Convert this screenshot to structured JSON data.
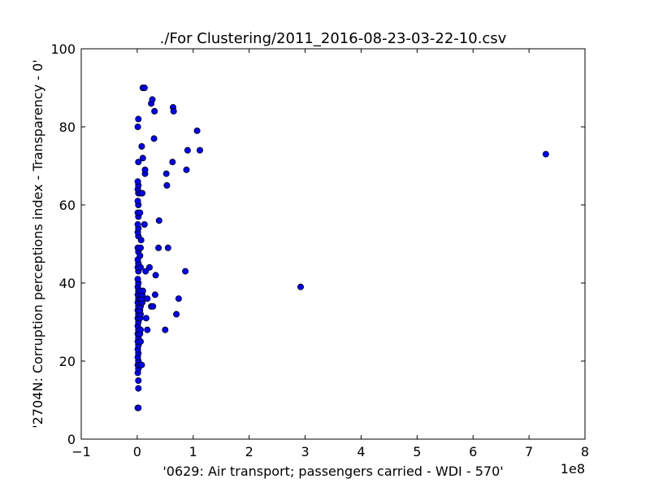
{
  "chart_data": {
    "type": "scatter",
    "title": "./For Clustering/2011_2016-08-23-03-22-10.csv",
    "xlabel": "'0629: Air transport; passengers carried - WDI - 570'",
    "ylabel": "'2704N: Corruption perceptions index - Transparency - 0'",
    "x_offset_label": "1e8",
    "xlim": [
      -1,
      8
    ],
    "ylim": [
      0,
      100
    ],
    "x_ticks": [
      -1,
      0,
      1,
      2,
      3,
      4,
      5,
      6,
      7,
      8
    ],
    "x_tick_labels": [
      "−1",
      "0",
      "1",
      "2",
      "3",
      "4",
      "5",
      "6",
      "7",
      "8"
    ],
    "y_ticks": [
      0,
      20,
      40,
      60,
      80,
      100
    ],
    "y_tick_labels": [
      "0",
      "20",
      "40",
      "60",
      "80",
      "100"
    ],
    "grid": false,
    "legend": "none",
    "marker_color": "#0000ff",
    "x_unit_note": "x values in units of 1e8 passengers",
    "points": [
      [
        0.01,
        8
      ],
      [
        0.02,
        8
      ],
      [
        0.02,
        13
      ],
      [
        0.02,
        15
      ],
      [
        0.01,
        17
      ],
      [
        0.02,
        18
      ],
      [
        0.01,
        19
      ],
      [
        0.02,
        20
      ],
      [
        0.01,
        21
      ],
      [
        0.02,
        22
      ],
      [
        0.01,
        23
      ],
      [
        0.02,
        24
      ],
      [
        0.01,
        25
      ],
      [
        0.02,
        26
      ],
      [
        0.01,
        27
      ],
      [
        0.02,
        28
      ],
      [
        0.01,
        29
      ],
      [
        0.02,
        30
      ],
      [
        0.01,
        31
      ],
      [
        0.02,
        32
      ],
      [
        0.01,
        33
      ],
      [
        0.02,
        34
      ],
      [
        0.01,
        35
      ],
      [
        0.02,
        36
      ],
      [
        0.01,
        37
      ],
      [
        0.02,
        38
      ],
      [
        0.01,
        39
      ],
      [
        0.02,
        40
      ],
      [
        0.01,
        41
      ],
      [
        0.02,
        43
      ],
      [
        0.01,
        44
      ],
      [
        0.02,
        45
      ],
      [
        0.01,
        46
      ],
      [
        0.02,
        48
      ],
      [
        0.01,
        49
      ],
      [
        0.02,
        52
      ],
      [
        0.01,
        53
      ],
      [
        0.02,
        54
      ],
      [
        0.01,
        55
      ],
      [
        0.02,
        57
      ],
      [
        0.01,
        58
      ],
      [
        0.02,
        60
      ],
      [
        0.01,
        61
      ],
      [
        0.02,
        63
      ],
      [
        0.01,
        64
      ],
      [
        0.02,
        65
      ],
      [
        0.01,
        66
      ],
      [
        0.02,
        71
      ],
      [
        0.01,
        80
      ],
      [
        0.02,
        82
      ],
      [
        0.05,
        19
      ],
      [
        0.06,
        25
      ],
      [
        0.05,
        27
      ],
      [
        0.06,
        28
      ],
      [
        0.05,
        31
      ],
      [
        0.06,
        32
      ],
      [
        0.05,
        33
      ],
      [
        0.06,
        34
      ],
      [
        0.07,
        35
      ],
      [
        0.05,
        36
      ],
      [
        0.06,
        37
      ],
      [
        0.05,
        38
      ],
      [
        0.06,
        44
      ],
      [
        0.05,
        47
      ],
      [
        0.06,
        49
      ],
      [
        0.07,
        51
      ],
      [
        0.05,
        58
      ],
      [
        0.06,
        63
      ],
      [
        0.08,
        19
      ],
      [
        0.09,
        35
      ],
      [
        0.08,
        36
      ],
      [
        0.09,
        37
      ],
      [
        0.1,
        38
      ],
      [
        0.09,
        63
      ],
      [
        0.1,
        72
      ],
      [
        0.08,
        75
      ],
      [
        0.1,
        90
      ],
      [
        0.13,
        90
      ],
      [
        0.13,
        55
      ],
      [
        0.14,
        68
      ],
      [
        0.14,
        69
      ],
      [
        0.15,
        43
      ],
      [
        0.16,
        31
      ],
      [
        0.18,
        28
      ],
      [
        0.18,
        36
      ],
      [
        0.22,
        44
      ],
      [
        0.25,
        34
      ],
      [
        0.25,
        86
      ],
      [
        0.27,
        87
      ],
      [
        0.28,
        34
      ],
      [
        0.3,
        77
      ],
      [
        0.31,
        84
      ],
      [
        0.32,
        37
      ],
      [
        0.33,
        42
      ],
      [
        0.38,
        49
      ],
      [
        0.39,
        56
      ],
      [
        0.5,
        28
      ],
      [
        0.52,
        68
      ],
      [
        0.53,
        65
      ],
      [
        0.55,
        49
      ],
      [
        0.63,
        71
      ],
      [
        0.64,
        85
      ],
      [
        0.65,
        84
      ],
      [
        0.7,
        32
      ],
      [
        0.74,
        36
      ],
      [
        0.86,
        43
      ],
      [
        0.88,
        69
      ],
      [
        0.9,
        74
      ],
      [
        1.07,
        79
      ],
      [
        1.12,
        74
      ],
      [
        2.92,
        39
      ],
      [
        7.3,
        73
      ]
    ]
  }
}
